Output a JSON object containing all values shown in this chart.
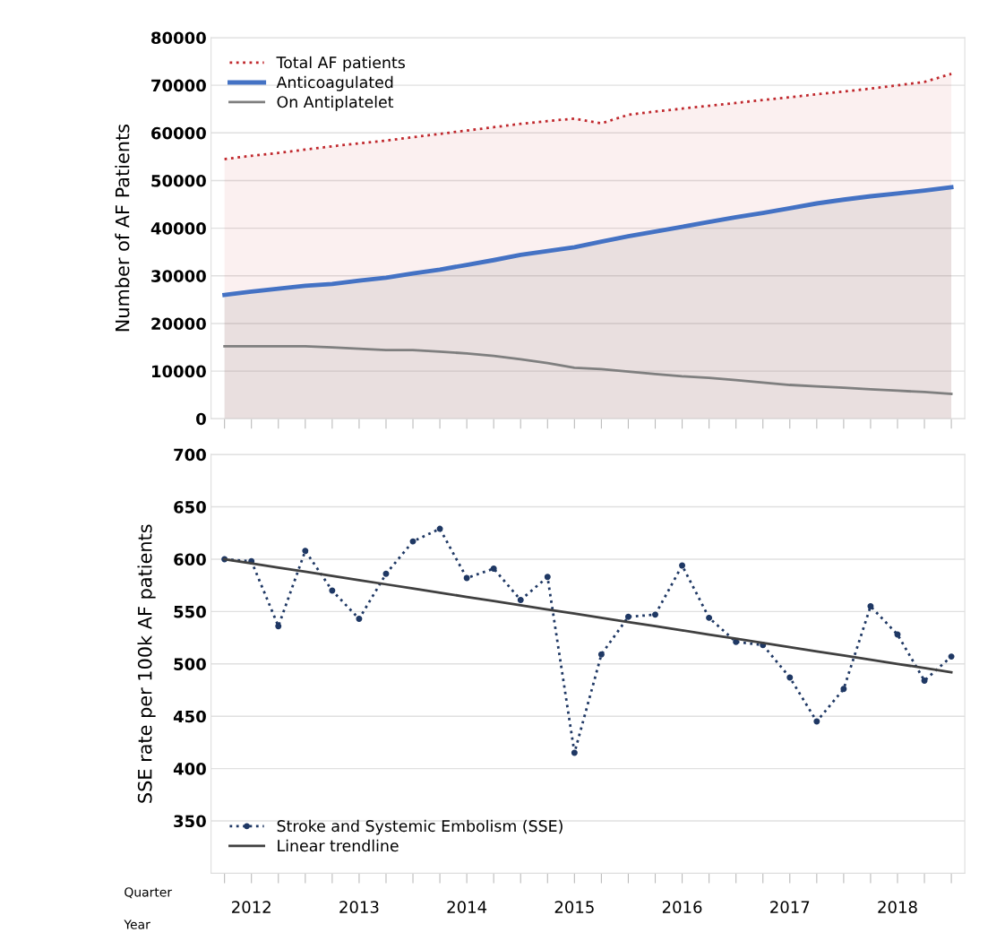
{
  "chart_data": [
    {
      "type": "area",
      "ylabel": "Number of AF Patients",
      "categories": [
        null,
        null,
        null,
        null,
        null,
        null,
        null,
        null,
        null,
        null,
        null,
        null,
        null,
        null,
        null,
        null,
        null,
        null,
        null,
        null,
        null,
        null,
        null,
        null,
        null,
        null,
        null,
        null
      ],
      "series": [
        {
          "name": "Total AF patients",
          "color": "#c0282d",
          "line_style": "dotted",
          "values": [
            54500,
            55200,
            55800,
            56500,
            57200,
            57800,
            58400,
            59100,
            59800,
            60500,
            61200,
            61900,
            62500,
            63000,
            62000,
            63800,
            64500,
            65100,
            65700,
            66300,
            66900,
            67500,
            68100,
            68700,
            69300,
            70000,
            70700,
            72400
          ]
        },
        {
          "name": "Anticoagulated",
          "color": "#4472c4",
          "line_style": "solid",
          "values": [
            26000,
            26700,
            27300,
            27900,
            28300,
            29000,
            29600,
            30500,
            31300,
            32300,
            33300,
            34400,
            35200,
            36000,
            37200,
            38300,
            39300,
            40300,
            41300,
            42300,
            43200,
            44200,
            45200,
            46000,
            46700,
            47300,
            47900,
            48600
          ]
        },
        {
          "name": "On Antiplatelet",
          "type": "line",
          "color": "#7f7f7f",
          "line_style": "solid",
          "values": [
            15200,
            15200,
            15200,
            15200,
            15000,
            14700,
            14400,
            14400,
            14100,
            13700,
            13200,
            12500,
            11700,
            10700,
            10400,
            9900,
            9400,
            8900,
            8600,
            8100,
            7600,
            7100,
            6800,
            6500,
            6200,
            5900,
            5600,
            5200
          ]
        }
      ],
      "ylim": [
        0,
        80000
      ],
      "yticks": [
        0,
        10000,
        20000,
        30000,
        40000,
        50000,
        60000,
        70000,
        80000
      ],
      "grid": "y",
      "legend": "top left",
      "tick_labels": "y"
    },
    {
      "type": "line",
      "ylabel": "SSE rate per 100k AF patients",
      "categories": [
        null,
        "2012",
        null,
        null,
        null,
        "2013",
        null,
        null,
        null,
        "2014",
        null,
        null,
        null,
        "2015",
        null,
        null,
        null,
        "2016",
        null,
        null,
        null,
        "2017",
        null,
        null,
        null,
        "2018",
        null,
        null
      ],
      "series": [
        {
          "name": "Stroke and Systemic Embolism (SSE)",
          "color": "#1f3864",
          "line_style": "dotted",
          "marker": "circle",
          "values": [
            600,
            598,
            536,
            608,
            570,
            543,
            586,
            617,
            629,
            582,
            591,
            561,
            583,
            415,
            509,
            545,
            547,
            594,
            544,
            521,
            518,
            487,
            445,
            476,
            555,
            528,
            484,
            507
          ]
        },
        {
          "name": "Linear trendline",
          "color": "#404040",
          "line_style": "solid",
          "marker": "none",
          "values": [
            600,
            596,
            592,
            588,
            584,
            580,
            576,
            572,
            568,
            564,
            560,
            556,
            552,
            548,
            544,
            540,
            536,
            532,
            528,
            524,
            520,
            516,
            512,
            508,
            504,
            500,
            496,
            492
          ]
        }
      ],
      "ylim": [
        300,
        700
      ],
      "yticks": [
        350,
        400,
        450,
        500,
        550,
        600,
        650,
        700
      ],
      "grid": "y",
      "legend": "bottom left",
      "annotations": [
        "Quarter",
        "Year"
      ]
    }
  ]
}
